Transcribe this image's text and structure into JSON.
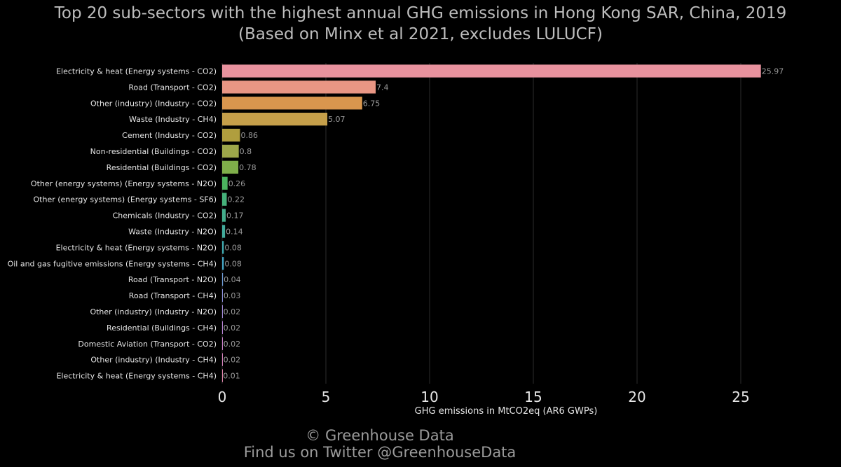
{
  "title_line1": "Top 20 sub-sectors with the highest annual GHG emissions in Hong Kong SAR, China, 2019",
  "title_line2": "(Based on Minx et al 2021, excludes LULUCF)",
  "footer_line1": "© Greenhouse Data",
  "footer_line2": "Find us on Twitter @GreenhouseData",
  "colors": {
    "background": "#000000",
    "grid": "#2b2b2b",
    "bars": [
      "#e8929e",
      "#e99684",
      "#d9964e",
      "#c59f4a",
      "#b09e3e",
      "#9ea74a",
      "#7fae4a",
      "#4bb35f",
      "#45b07a",
      "#44ad8c",
      "#42aa9b",
      "#3fa6ab",
      "#43a1c0",
      "#6d99d3",
      "#8a8fd9",
      "#a087d6",
      "#b582d2",
      "#c67fc6",
      "#d27fb8",
      "#dc83a8"
    ]
  },
  "chart_data": {
    "type": "bar",
    "orientation": "horizontal",
    "title": "Top 20 sub-sectors with the highest annual GHG emissions in Hong Kong SAR, China, 2019",
    "subtitle": "(Based on Minx et al 2021, excludes LULUCF)",
    "xlabel": "GHG emissions in MtCO2eq (AR6 GWPs)",
    "ylabel": "",
    "xlim": [
      0,
      27
    ],
    "xticks": [
      0,
      5,
      10,
      15,
      20,
      25
    ],
    "grid": true,
    "categories": [
      "Electricity & heat (Energy systems - CO2)",
      "Road (Transport - CO2)",
      "Other (industry) (Industry - CO2)",
      "Waste (Industry - CH4)",
      "Cement (Industry - CO2)",
      "Non-residential (Buildings - CO2)",
      "Residential (Buildings - CO2)",
      "Other (energy systems) (Energy systems - N2O)",
      "Other (energy systems) (Energy systems - SF6)",
      "Chemicals (Industry - CO2)",
      "Waste (Industry - N2O)",
      "Electricity & heat (Energy systems - N2O)",
      "Oil and gas fugitive emissions (Energy systems - CH4)",
      "Road (Transport - N2O)",
      "Road (Transport - CH4)",
      "Other (industry) (Industry - N2O)",
      "Residential (Buildings - CH4)",
      "Domestic Aviation (Transport - CO2)",
      "Other (industry) (Industry - CH4)",
      "Electricity & heat (Energy systems - CH4)"
    ],
    "values": [
      25.97,
      7.4,
      6.75,
      5.07,
      0.86,
      0.8,
      0.78,
      0.26,
      0.22,
      0.17,
      0.14,
      0.08,
      0.08,
      0.04,
      0.03,
      0.02,
      0.02,
      0.02,
      0.02,
      0.01
    ],
    "value_labels": [
      "25.97",
      "7.4",
      "6.75",
      "5.07",
      "0.86",
      "0.8",
      "0.78",
      "0.26",
      "0.22",
      "0.17",
      "0.14",
      "0.08",
      "0.08",
      "0.04",
      "0.03",
      "0.02",
      "0.02",
      "0.02",
      "0.02",
      "0.01"
    ]
  }
}
